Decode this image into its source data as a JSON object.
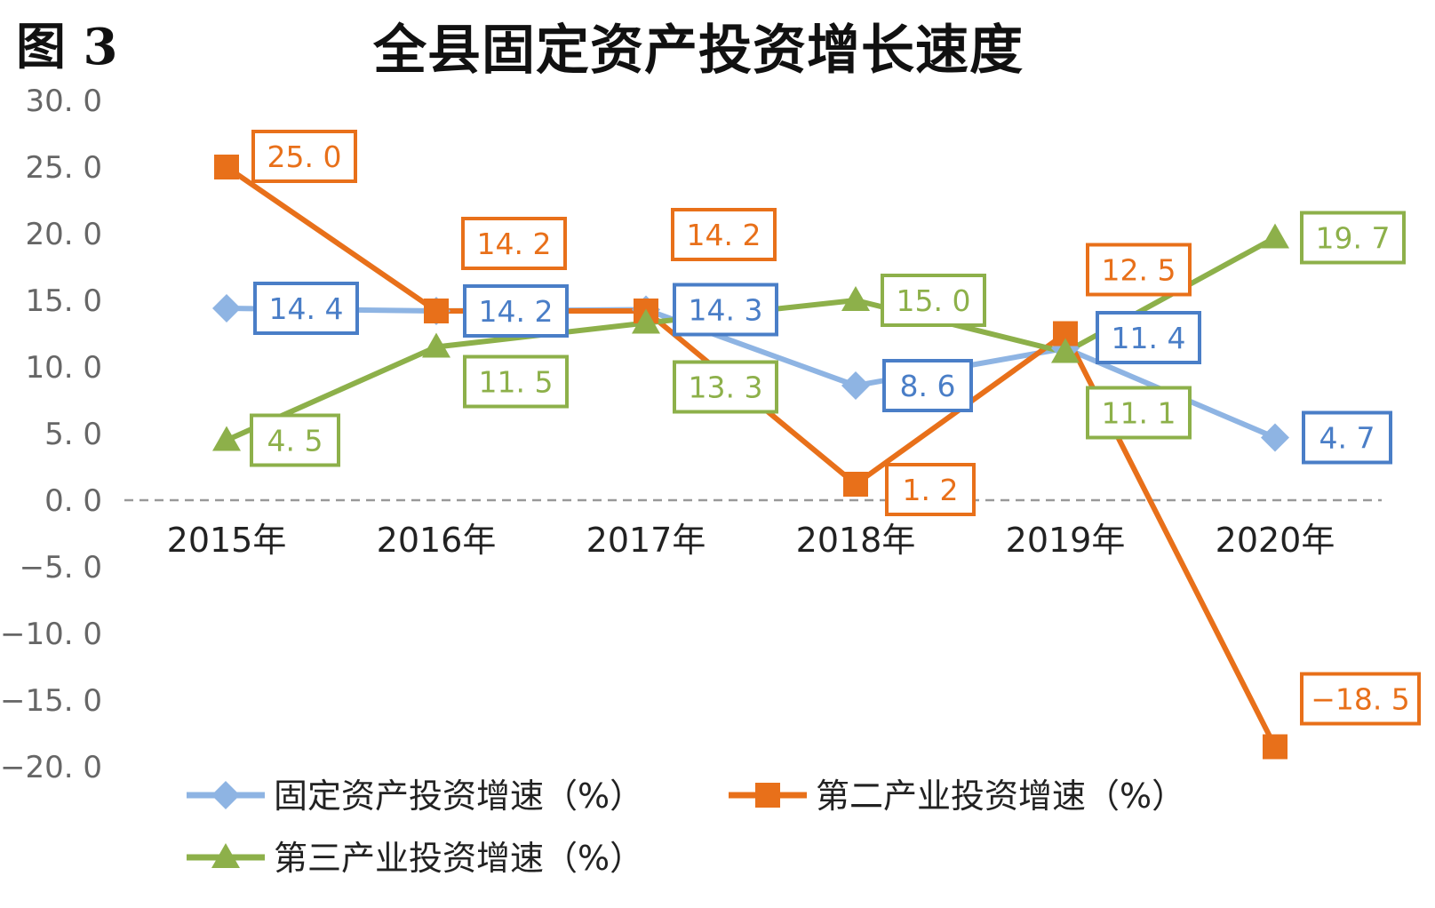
{
  "figure_label": "图 3",
  "chart_data": {
    "type": "line",
    "title": "全县固定资产投资增长速度",
    "xlabel": "",
    "ylabel": "",
    "categories": [
      "2015年",
      "2016年",
      "2017年",
      "2018年",
      "2019年",
      "2020年"
    ],
    "ylim": [
      -20,
      30
    ],
    "yticks": [
      "30. 0",
      "25. 0",
      "20. 0",
      "15. 0",
      "10. 0",
      "5. 0",
      "0. 0",
      "−5. 0",
      "−10. 0",
      "−15. 0",
      "−20. 0"
    ],
    "ytick_values": [
      30,
      25,
      20,
      15,
      10,
      5,
      0,
      -5,
      -10,
      -15,
      -20
    ],
    "grid": false,
    "zero_line": "dashed",
    "legend_position": "bottom",
    "series": [
      {
        "name": "固定资产投资增速（%）",
        "color": "#8EB4E3",
        "label_color": "#4A7EC7",
        "marker": "diamond",
        "values": [
          14.4,
          14.2,
          14.3,
          8.6,
          11.4,
          4.7
        ],
        "labels": [
          "14. 4",
          "14. 2",
          "14. 3",
          "8. 6",
          "11. 4",
          "4. 7"
        ]
      },
      {
        "name": "第二产业投资增速（%）",
        "color": "#E8701A",
        "label_color": "#E8701A",
        "marker": "square",
        "values": [
          25.0,
          14.2,
          14.2,
          1.2,
          12.5,
          -18.5
        ],
        "labels": [
          "25. 0",
          "14. 2",
          "14. 2",
          "1. 2",
          "12. 5",
          "−18. 5"
        ]
      },
      {
        "name": "第三产业投资增速（%）",
        "color": "#8DB04A",
        "label_color": "#8DB04A",
        "marker": "triangle",
        "values": [
          4.5,
          11.5,
          13.3,
          15.0,
          11.1,
          19.7
        ],
        "labels": [
          "4. 5",
          "11. 5",
          "13. 3",
          "15. 0",
          "11. 1",
          "19. 7"
        ]
      }
    ]
  }
}
